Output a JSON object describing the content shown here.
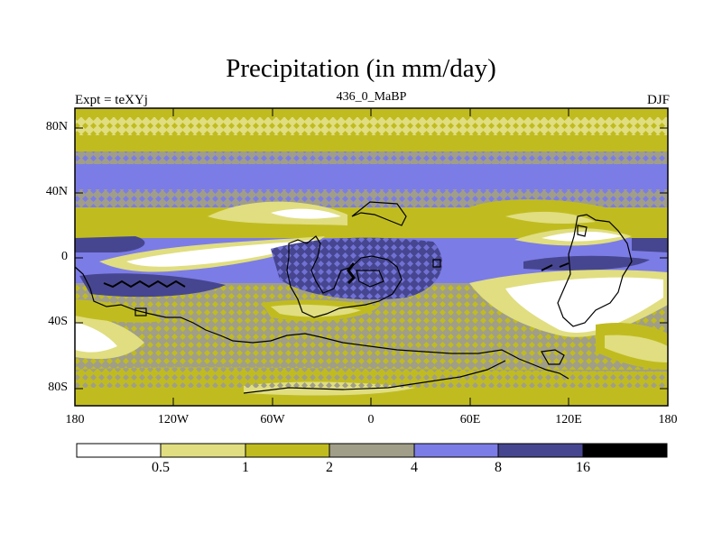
{
  "header": {
    "title": "Precipitation (in mm/day)",
    "left_string": "Expt = teXYj",
    "center_string": "436_0_MaBP",
    "right_string": "DJF"
  },
  "map": {
    "y_ticks": [
      "80N",
      "40N",
      "0",
      "40S",
      "80S"
    ],
    "x_ticks": [
      "180",
      "120W",
      "60W",
      "0",
      "60E",
      "120E",
      "180"
    ],
    "coastline_color": "#000000",
    "stipple": "lighter-level diamond stippling over most of the field"
  },
  "colorbar": {
    "boundaries": [
      "0.5",
      "1",
      "2",
      "4",
      "8",
      "16"
    ],
    "colors": [
      "#ffffff",
      "#e0de80",
      "#c0bc20",
      "#a09e88",
      "#7c7ce6",
      "#464690",
      "#000000"
    ]
  }
}
